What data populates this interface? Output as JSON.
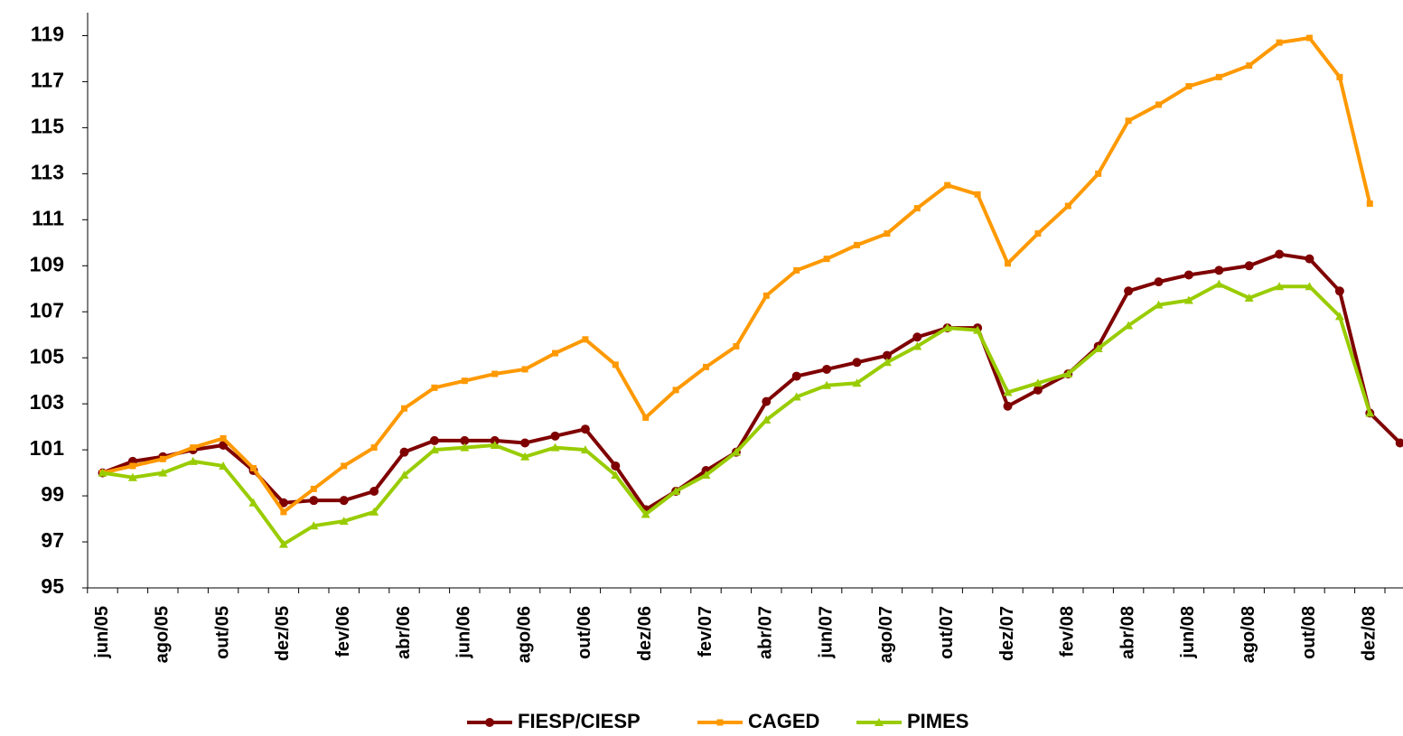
{
  "chart_data": {
    "type": "line",
    "categories": [
      "jun/05",
      null,
      "ago/05",
      null,
      "out/05",
      null,
      "dez/05",
      null,
      "fev/06",
      null,
      "abr/06",
      null,
      "jun/06",
      null,
      "ago/06",
      null,
      "out/06",
      null,
      "dez/06",
      null,
      "fev/07",
      null,
      "abr/07",
      null,
      "jun/07",
      null,
      "ago/07",
      null,
      "out/07",
      null,
      "dez/07",
      null,
      "fev/08",
      null,
      "abr/08",
      null,
      "jun/08",
      null,
      "ago/08",
      null,
      "out/08",
      null,
      "dez/08",
      null
    ],
    "series": [
      {
        "name": "FIESP/CIESP",
        "color": "#7f0000",
        "marker": "circle",
        "values": [
          100.0,
          100.5,
          100.7,
          101.0,
          101.2,
          100.1,
          98.7,
          98.8,
          98.8,
          99.2,
          100.9,
          101.4,
          101.4,
          101.4,
          101.3,
          101.6,
          101.9,
          100.3,
          98.4,
          99.2,
          100.1,
          100.9,
          103.1,
          104.2,
          104.5,
          104.8,
          105.1,
          105.9,
          106.3,
          106.3,
          102.9,
          103.6,
          104.3,
          105.5,
          107.9,
          108.3,
          108.6,
          108.8,
          109.0,
          109.5,
          109.3,
          107.9,
          102.6,
          101.3
        ]
      },
      {
        "name": "CAGED",
        "color": "#ff9900",
        "marker": "square",
        "values": [
          100.0,
          100.3,
          100.6,
          101.1,
          101.5,
          100.2,
          98.3,
          99.3,
          100.3,
          101.1,
          102.8,
          103.7,
          104.0,
          104.3,
          104.5,
          105.2,
          105.8,
          104.7,
          102.4,
          103.6,
          104.6,
          105.5,
          107.7,
          108.8,
          109.3,
          109.9,
          110.4,
          111.5,
          112.5,
          112.1,
          109.1,
          110.4,
          111.6,
          113.0,
          115.3,
          116.0,
          116.8,
          117.2,
          117.7,
          118.7,
          118.9,
          117.2,
          111.7,
          null
        ]
      },
      {
        "name": "PIMES",
        "color": "#99cc00",
        "marker": "triangle",
        "values": [
          100.0,
          99.8,
          100.0,
          100.5,
          100.3,
          98.7,
          96.9,
          97.7,
          97.9,
          98.3,
          99.9,
          101.0,
          101.1,
          101.2,
          100.7,
          101.1,
          101.0,
          99.9,
          98.2,
          99.2,
          99.9,
          100.9,
          102.3,
          103.3,
          103.8,
          103.9,
          104.8,
          105.5,
          106.3,
          106.2,
          103.5,
          103.9,
          104.3,
          105.4,
          106.4,
          107.3,
          107.5,
          108.2,
          107.6,
          108.1,
          108.1,
          106.8,
          102.6,
          null
        ]
      }
    ],
    "ylim": [
      95,
      120
    ],
    "yticks": [
      95,
      97,
      99,
      101,
      103,
      105,
      107,
      109,
      111,
      113,
      115,
      117,
      119
    ],
    "grid": false,
    "legend": "bottom"
  }
}
